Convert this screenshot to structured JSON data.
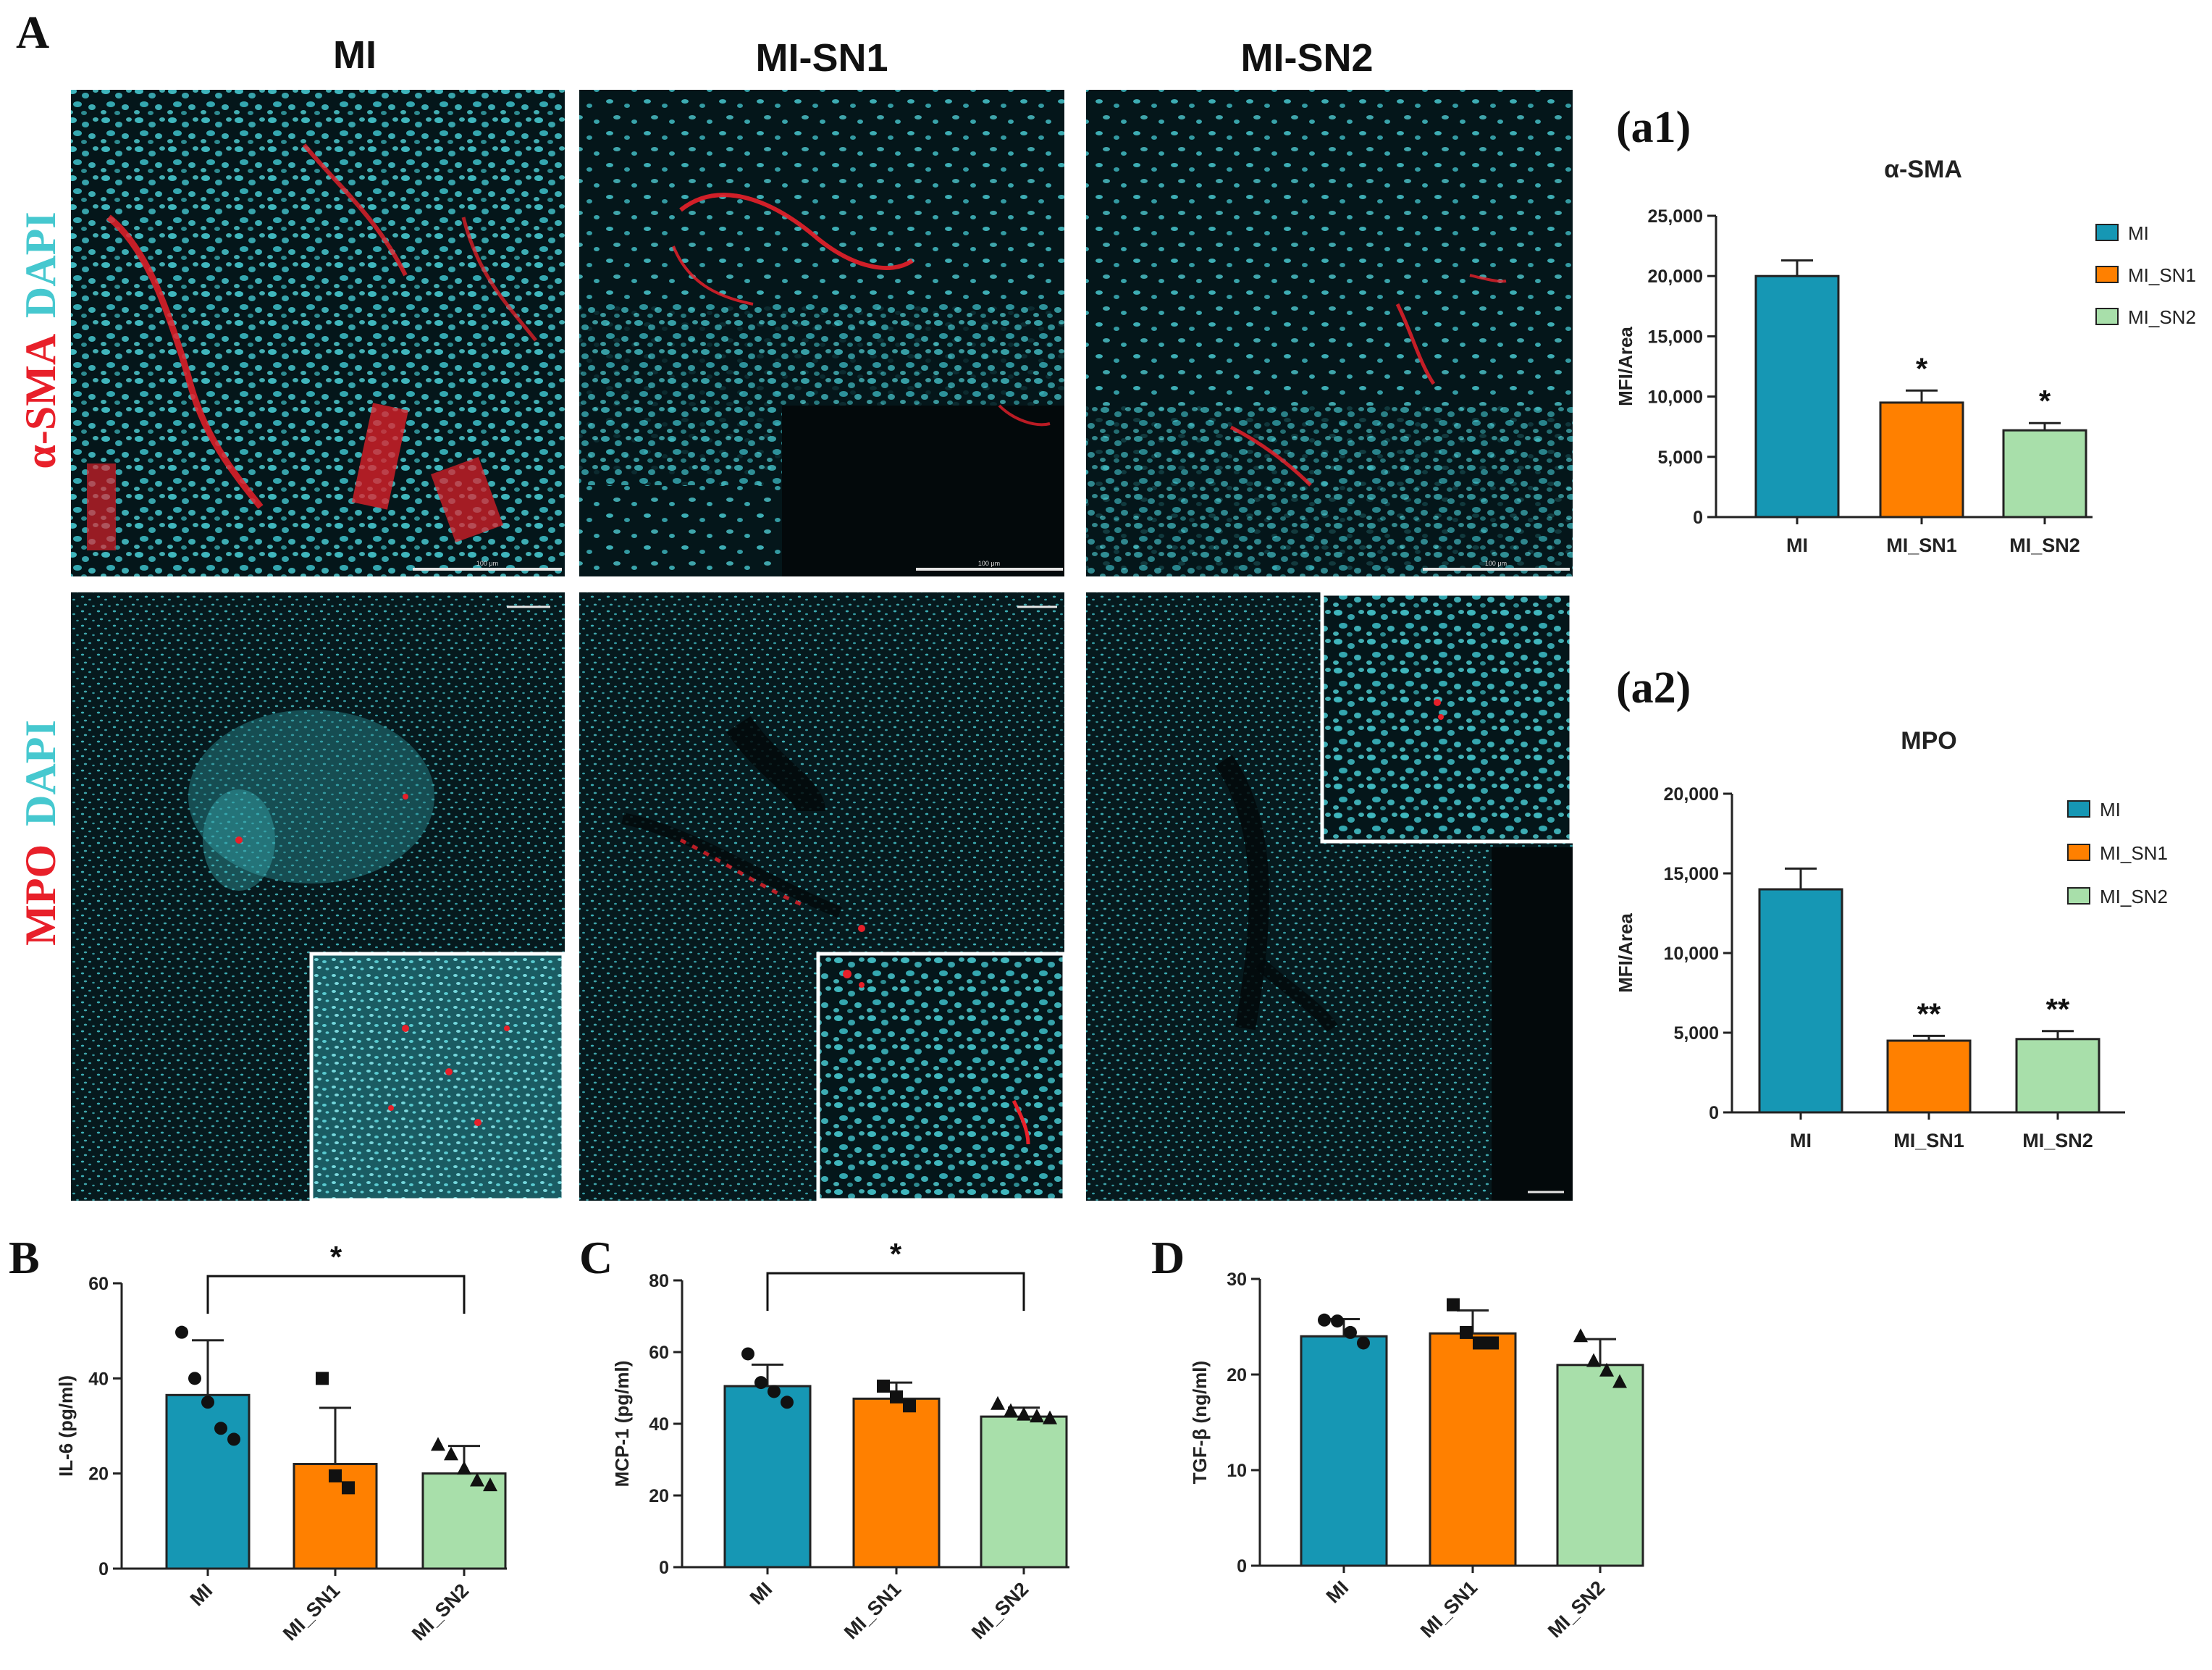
{
  "panels": {
    "A": "A",
    "a1": "(a1)",
    "a2": "(a2)",
    "B": "B",
    "C": "C",
    "D": "D"
  },
  "micrographs": {
    "columns": [
      "MI",
      "MI-SN1",
      "MI-SN2"
    ],
    "row_labels": [
      {
        "marker": "α-SMA",
        "counterstain": "DAPI"
      },
      {
        "marker": "MPO",
        "counterstain": "DAPI"
      }
    ],
    "scale_bar_label": "100 μm"
  },
  "colors": {
    "MI": "#1697b4",
    "MI_SN1": "#ff8000",
    "MI_SN2": "#a8dfaa",
    "micro_bg": "#04161a",
    "cyan": "#46c8cf",
    "red": "#e8202a"
  },
  "chart_data": [
    {
      "id": "a1",
      "type": "bar",
      "title": "α-SMA",
      "ylabel": "MFI/Area",
      "xlabel": "",
      "categories": [
        "MI",
        "MI_SN1",
        "MI_SN2"
      ],
      "values": [
        20000,
        9500,
        7200
      ],
      "errors": [
        1300,
        1000,
        600
      ],
      "significance": [
        "",
        "*",
        "*"
      ],
      "ylim": [
        0,
        25000
      ],
      "yticks": [
        0,
        5000,
        10000,
        15000,
        20000,
        25000
      ],
      "ytick_labels": [
        "0",
        "5,000",
        "10,000",
        "15,000",
        "20,000",
        "25,000"
      ],
      "legend": [
        "MI",
        "MI_SN1",
        "MI_SN2"
      ],
      "legend_position": "right"
    },
    {
      "id": "a2",
      "type": "bar",
      "title": "MPO",
      "ylabel": "MFI/Area",
      "xlabel": "",
      "categories": [
        "MI",
        "MI_SN1",
        "MI_SN2"
      ],
      "values": [
        14000,
        4500,
        4600
      ],
      "errors": [
        1300,
        300,
        500
      ],
      "significance": [
        "",
        "**",
        "**"
      ],
      "ylim": [
        0,
        20000
      ],
      "yticks": [
        0,
        5000,
        10000,
        15000,
        20000
      ],
      "ytick_labels": [
        "0",
        "5,000",
        "10,000",
        "15,000",
        "20,000"
      ],
      "legend": [
        "MI",
        "MI_SN1",
        "MI_SN2"
      ],
      "legend_position": "right"
    },
    {
      "id": "B",
      "type": "bar",
      "title": "",
      "ylabel": "IL-6 (pg/ml)",
      "xlabel": "",
      "categories": [
        "MI",
        "MI_SN1",
        "MI_SN2"
      ],
      "values": [
        36.5,
        22,
        20
      ],
      "errors": [
        11.5,
        11.8,
        5.8
      ],
      "points": [
        [
          49.7,
          40,
          35,
          29.5,
          27.2
        ],
        [
          40,
          19.5,
          17
        ],
        [
          26,
          24,
          21,
          18.5,
          17.5
        ]
      ],
      "comparison": {
        "from": 0,
        "to": 2,
        "label": "*",
        "y": 61.5
      },
      "ylim": [
        0,
        60
      ],
      "yticks": [
        0,
        20,
        40,
        60
      ],
      "ytick_labels": [
        "0",
        "20",
        "40",
        "60"
      ]
    },
    {
      "id": "C",
      "type": "bar",
      "title": "",
      "ylabel": "MCP-1 (pg/ml)",
      "xlabel": "",
      "categories": [
        "MI",
        "MI_SN1",
        "MI_SN2"
      ],
      "values": [
        50.5,
        47,
        42
      ],
      "errors": [
        6,
        4.5,
        2.5
      ],
      "points": [
        [
          59.5,
          51.5,
          49,
          46
        ],
        [
          50.5,
          47.5,
          45
        ],
        [
          45.5,
          43.5,
          42.5,
          42,
          41.5
        ]
      ],
      "comparison": {
        "from": 0,
        "to": 2,
        "label": "*",
        "y": 82
      },
      "ylim": [
        0,
        80
      ],
      "yticks": [
        0,
        20,
        40,
        60,
        80
      ],
      "ytick_labels": [
        "0",
        "20",
        "40",
        "60",
        "80"
      ]
    },
    {
      "id": "D",
      "type": "bar",
      "title": "",
      "ylabel": "TGF-β (ng/ml)",
      "xlabel": "",
      "categories": [
        "MI",
        "MI_SN1",
        "MI_SN2"
      ],
      "values": [
        24,
        24.3,
        21
      ],
      "errors": [
        1.8,
        2.4,
        2.7
      ],
      "points": [
        [
          25.7,
          25.6,
          24.4,
          23.3
        ],
        [
          27.3,
          24.4,
          23.3,
          23.3
        ],
        [
          24,
          21.4,
          20.4,
          19.2
        ]
      ],
      "ylim": [
        0,
        30
      ],
      "yticks": [
        0,
        10,
        20,
        30
      ],
      "ytick_labels": [
        "0",
        "10",
        "20",
        "30"
      ]
    }
  ]
}
